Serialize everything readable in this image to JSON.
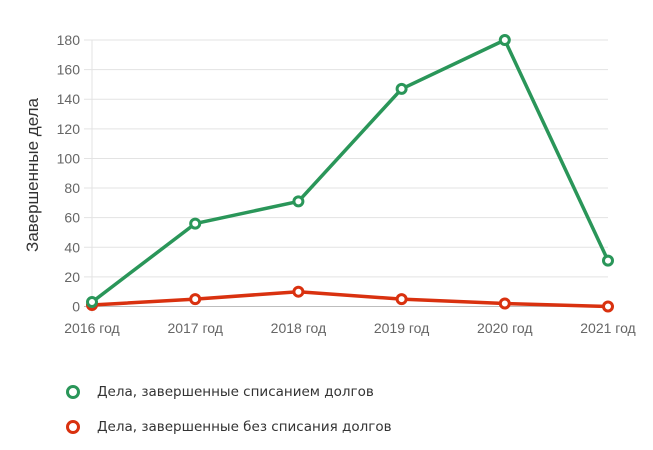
{
  "chart_data": {
    "type": "line",
    "title": "",
    "xlabel": "",
    "ylabel": "Завершенные дела",
    "categories": [
      "2016 год",
      "2017 год",
      "2018 год",
      "2019 год",
      "2020 год",
      "2021 год"
    ],
    "yticks": [
      0,
      20,
      40,
      60,
      80,
      100,
      120,
      140,
      160,
      180
    ],
    "ylim": [
      0,
      180
    ],
    "grid": true,
    "legend_position": "bottom-left",
    "series": [
      {
        "name": "Дела, завершенные списанием долгов",
        "color": "#2a9659",
        "values": [
          3,
          56,
          71,
          147,
          180,
          31
        ]
      },
      {
        "name": "Дела, завершенные без списания долгов",
        "color": "#d9310f",
        "values": [
          1,
          5,
          10,
          5,
          2,
          0
        ]
      }
    ]
  },
  "legend": {
    "items": [
      {
        "label": "Дела, завершенные списанием долгов",
        "color": "#2a9659"
      },
      {
        "label": "Дела, завершенные без списания долгов",
        "color": "#d9310f"
      }
    ]
  }
}
